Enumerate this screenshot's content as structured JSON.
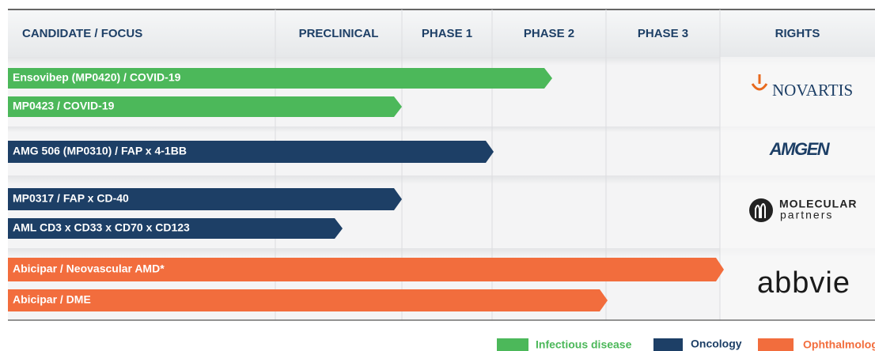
{
  "header": {
    "columns": [
      "CANDIDATE / FOCUS",
      "PRECLINICAL",
      "PHASE 1",
      "PHASE 2",
      "PHASE 3",
      "RIGHTS"
    ]
  },
  "candidates": [
    "Ensovibep (MP0420) / COVID-19",
    "MP0423 / COVID-19",
    "AMG 506 (MP0310) / FAP x 4-1BB",
    "MP0317 / FAP x CD-40",
    "AML CD3 x CD33 x CD70 x CD123",
    "Abicipar / Neovascular AMD*",
    "Abicipar / DME"
  ],
  "rights": [
    "NOVARTIS",
    "AMGEN",
    "MOLECULAR",
    "partners",
    "abbvie"
  ],
  "legend": [
    "Infectious disease",
    "Oncology",
    "Ophthalmolog"
  ]
}
